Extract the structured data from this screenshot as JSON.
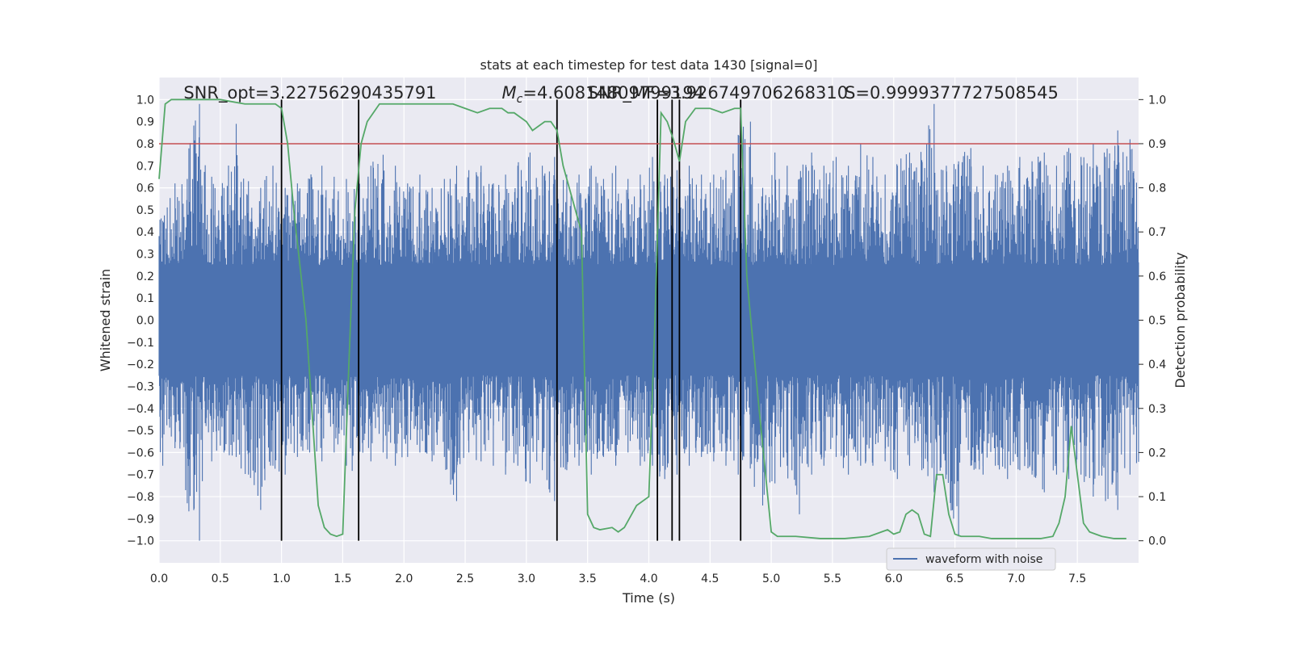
{
  "chart_data": {
    "type": "line",
    "title": "stats at each timestep for test data 1430 [signal=0]",
    "xlabel": "Time (s)",
    "ylabel": "Whitened strain",
    "y2label": "Detection probability",
    "xlim": [
      0.0,
      8.0
    ],
    "ylim": [
      -1.1,
      1.1
    ],
    "y2lim": [
      -0.05,
      1.05
    ],
    "x_ticks": [
      0.0,
      0.5,
      1.0,
      1.5,
      2.0,
      2.5,
      3.0,
      3.5,
      4.0,
      4.5,
      5.0,
      5.5,
      6.0,
      6.5,
      7.0,
      7.5
    ],
    "x_tick_labels": [
      "0.0",
      "0.5",
      "1.0",
      "1.5",
      "2.0",
      "2.5",
      "3.0",
      "3.5",
      "4.0",
      "4.5",
      "5.0",
      "5.5",
      "6.0",
      "6.5",
      "7.0",
      "7.5"
    ],
    "y_ticks": [
      -1.0,
      -0.9,
      -0.8,
      -0.7,
      -0.6,
      -0.5,
      -0.4,
      -0.3,
      -0.2,
      -0.1,
      0.0,
      0.1,
      0.2,
      0.3,
      0.4,
      0.5,
      0.6,
      0.7,
      0.8,
      0.9,
      1.0
    ],
    "y_tick_labels": [
      "−1.0",
      "−0.9",
      "−0.8",
      "−0.7",
      "−0.6",
      "−0.5",
      "−0.4",
      "−0.3",
      "−0.2",
      "−0.1",
      "0.0",
      "0.1",
      "0.2",
      "0.3",
      "0.4",
      "0.5",
      "0.6",
      "0.7",
      "0.8",
      "0.9",
      "1.0"
    ],
    "y2_ticks": [
      0.0,
      0.1,
      0.2,
      0.3,
      0.4,
      0.5,
      0.6,
      0.7,
      0.8,
      0.9,
      1.0
    ],
    "y2_tick_labels": [
      "0.0",
      "0.1",
      "0.2",
      "0.3",
      "0.4",
      "0.5",
      "0.6",
      "0.7",
      "0.8",
      "0.9",
      "1.0"
    ],
    "grid": true,
    "legend": {
      "position": "lower-right",
      "entries": [
        "waveform with noise"
      ]
    },
    "series": [
      {
        "name": "waveform with noise",
        "axis": "left",
        "color": "#4c72b0",
        "envelope_note": "dense noise trace; upper/lower extremes per time sample",
        "x": [
          0.0,
          0.1,
          0.2,
          0.3,
          0.4,
          0.5,
          0.6,
          0.7,
          0.8,
          0.9,
          1.0,
          1.1,
          1.2,
          1.3,
          1.4,
          1.5,
          1.6,
          1.7,
          1.8,
          1.9,
          2.0,
          2.1,
          2.2,
          2.3,
          2.4,
          2.5,
          2.6,
          2.7,
          2.8,
          2.9,
          3.0,
          3.1,
          3.2,
          3.3,
          3.4,
          3.5,
          3.6,
          3.7,
          3.8,
          3.9,
          4.0,
          4.1,
          4.2,
          4.3,
          4.4,
          4.5,
          4.6,
          4.7,
          4.8,
          4.9,
          5.0,
          5.1,
          5.2,
          5.3,
          5.4,
          5.5,
          5.6,
          5.7,
          5.8,
          5.9,
          6.0,
          6.1,
          6.2,
          6.3,
          6.4,
          6.5,
          6.6,
          6.7,
          6.8,
          6.9,
          7.0,
          7.1,
          7.2,
          7.3,
          7.4,
          7.5,
          7.6,
          7.7,
          7.8,
          7.9
        ],
        "upper": [
          0.45,
          0.62,
          0.64,
          0.98,
          0.65,
          0.6,
          0.89,
          0.63,
          0.6,
          0.7,
          0.6,
          0.62,
          0.64,
          0.7,
          0.65,
          0.64,
          0.6,
          0.7,
          0.75,
          0.7,
          0.62,
          0.66,
          0.6,
          0.64,
          0.7,
          0.68,
          0.7,
          0.62,
          0.66,
          0.7,
          0.76,
          0.7,
          0.74,
          0.66,
          0.66,
          0.7,
          0.64,
          0.7,
          0.64,
          0.66,
          0.74,
          0.66,
          0.68,
          0.7,
          0.66,
          0.66,
          0.68,
          0.84,
          0.9,
          0.6,
          0.76,
          0.7,
          0.64,
          0.76,
          0.7,
          0.74,
          0.7,
          0.8,
          0.74,
          0.66,
          0.7,
          0.76,
          0.7,
          0.98,
          0.7,
          0.72,
          0.78,
          0.7,
          0.66,
          0.7,
          0.74,
          0.72,
          0.76,
          0.7,
          0.78,
          0.74,
          0.8,
          0.74,
          0.86,
          0.82
        ],
        "lower": [
          -0.66,
          -0.58,
          -0.78,
          -1.0,
          -0.64,
          -0.6,
          -0.62,
          -0.7,
          -0.86,
          -0.66,
          -0.7,
          -0.62,
          -0.6,
          -0.64,
          -0.6,
          -0.66,
          -0.7,
          -0.64,
          -0.6,
          -0.66,
          -0.62,
          -0.6,
          -0.64,
          -0.62,
          -0.82,
          -0.6,
          -0.64,
          -0.66,
          -0.7,
          -0.66,
          -0.74,
          -0.68,
          -0.82,
          -0.68,
          -0.66,
          -0.7,
          -0.62,
          -0.66,
          -0.6,
          -0.66,
          -0.66,
          -0.72,
          -0.7,
          -0.66,
          -0.62,
          -0.64,
          -0.66,
          -0.7,
          -0.62,
          -0.84,
          -0.74,
          -0.66,
          -0.88,
          -0.7,
          -0.66,
          -0.62,
          -0.7,
          -0.66,
          -0.66,
          -0.64,
          -0.72,
          -0.66,
          -0.68,
          -0.78,
          -0.7,
          -0.98,
          -0.66,
          -0.7,
          -0.66,
          -0.72,
          -0.68,
          -0.7,
          -0.78,
          -0.7,
          -0.72,
          -0.7,
          -0.8,
          -0.82,
          -0.86,
          -0.7
        ]
      },
      {
        "name": "",
        "axis": "right",
        "color": "#55a868",
        "x": [
          0.0,
          0.05,
          0.1,
          0.15,
          0.3,
          0.5,
          0.7,
          0.85,
          0.95,
          1.0,
          1.05,
          1.1,
          1.2,
          1.3,
          1.35,
          1.4,
          1.45,
          1.5,
          1.55,
          1.6,
          1.65,
          1.7,
          1.8,
          2.0,
          2.2,
          2.4,
          2.5,
          2.6,
          2.7,
          2.8,
          2.85,
          2.9,
          3.0,
          3.05,
          3.1,
          3.15,
          3.2,
          3.25,
          3.3,
          3.4,
          3.45,
          3.5,
          3.55,
          3.6,
          3.7,
          3.75,
          3.8,
          3.9,
          4.0,
          4.05,
          4.1,
          4.15,
          4.2,
          4.25,
          4.3,
          4.38,
          4.5,
          4.6,
          4.7,
          4.75,
          4.8,
          4.9,
          5.0,
          5.05,
          5.2,
          5.4,
          5.6,
          5.8,
          5.9,
          5.95,
          6.0,
          6.05,
          6.1,
          6.15,
          6.2,
          6.25,
          6.3,
          6.35,
          6.4,
          6.45,
          6.5,
          6.55,
          6.6,
          6.7,
          6.8,
          7.0,
          7.2,
          7.3,
          7.35,
          7.4,
          7.45,
          7.5,
          7.55,
          7.6,
          7.65,
          7.7,
          7.8,
          7.9
        ],
        "values": [
          0.82,
          0.99,
          1.0,
          1.0,
          1.0,
          1.0,
          0.99,
          0.99,
          0.99,
          0.98,
          0.9,
          0.75,
          0.5,
          0.08,
          0.03,
          0.015,
          0.01,
          0.015,
          0.4,
          0.75,
          0.9,
          0.95,
          0.99,
          0.99,
          0.99,
          0.99,
          0.98,
          0.97,
          0.98,
          0.98,
          0.97,
          0.97,
          0.95,
          0.93,
          0.94,
          0.95,
          0.95,
          0.93,
          0.85,
          0.75,
          0.7,
          0.06,
          0.03,
          0.025,
          0.03,
          0.02,
          0.03,
          0.08,
          0.1,
          0.5,
          0.97,
          0.95,
          0.91,
          0.86,
          0.95,
          0.98,
          0.98,
          0.97,
          0.98,
          0.98,
          0.6,
          0.3,
          0.02,
          0.01,
          0.01,
          0.005,
          0.005,
          0.01,
          0.02,
          0.025,
          0.015,
          0.02,
          0.06,
          0.07,
          0.06,
          0.015,
          0.01,
          0.15,
          0.15,
          0.06,
          0.015,
          0.01,
          0.01,
          0.01,
          0.005,
          0.005,
          0.005,
          0.01,
          0.04,
          0.1,
          0.26,
          0.15,
          0.04,
          0.02,
          0.015,
          0.01,
          0.005,
          0.005
        ]
      }
    ],
    "threshold": {
      "axis": "right",
      "value": 0.9,
      "color": "#c44e52"
    },
    "vlines": [
      1.0,
      1.63,
      3.25,
      4.07,
      4.19,
      4.25,
      4.75
    ],
    "annotations": [
      {
        "text": "SNR_opt=3.22756290435791",
        "x": 0.2,
        "y": 1.03,
        "tex": false
      },
      {
        "text": "=4.60814809799194",
        "x": 2.8,
        "y": 1.03,
        "tex": true,
        "prefix": "M",
        "sub": "c"
      },
      {
        "text": "SNR_MF=3.926749706268310",
        "x": 3.5,
        "y": 1.03,
        "tex": false
      },
      {
        "text": "S=0.9999377727508545",
        "x": 5.6,
        "y": 1.03,
        "tex": false
      }
    ]
  }
}
